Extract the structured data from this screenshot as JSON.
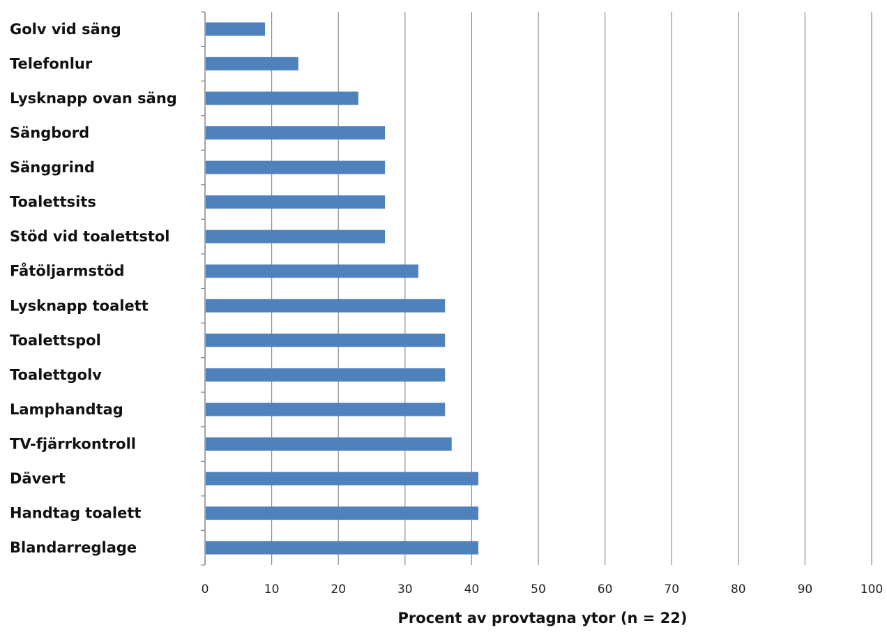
{
  "chart_data": {
    "type": "bar",
    "orientation": "horizontal",
    "categories": [
      "Golv vid säng",
      "Telefonlur",
      "Lysknapp ovan säng",
      "Sängbord",
      "Sänggrind",
      "Toalettsits",
      "Stöd vid toalettstol",
      "Fåtöljarmstöd",
      "Lysknapp toalett",
      "Toalettspol",
      "Toalettgolv",
      "Lamphandtag",
      "TV-fjärrkontroll",
      "Dävert",
      "Handtag toalett",
      "Blandarreglage"
    ],
    "values": [
      9,
      14,
      23,
      27,
      27,
      27,
      27,
      32,
      36,
      36,
      36,
      36,
      37,
      41,
      41,
      41
    ],
    "xlabel": "Procent av provtagna ytor (n = 22)",
    "ylabel": "",
    "xlim": [
      0,
      100
    ],
    "xticks": [
      0,
      10,
      20,
      30,
      40,
      50,
      60,
      70,
      80,
      90,
      100
    ],
    "grid": "vertical",
    "bar_color": "#4f81bd",
    "grid_color": "#8c8c8c"
  }
}
